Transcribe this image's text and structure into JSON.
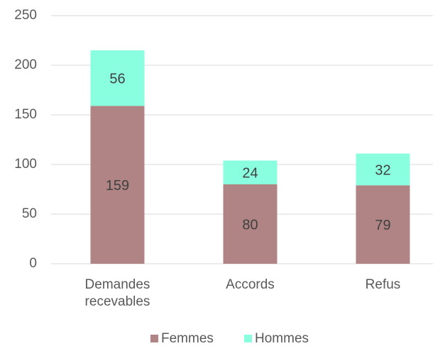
{
  "chart_data": {
    "type": "stacked_bar",
    "categories": [
      "Demandes recevables",
      "Accords",
      "Refus"
    ],
    "series": [
      {
        "name": "Femmes",
        "color": "#b08484",
        "values": [
          159,
          80,
          79
        ]
      },
      {
        "name": "Hommes",
        "color": "#8affdf",
        "values": [
          56,
          24,
          32
        ]
      }
    ],
    "ylim": [
      0,
      250
    ],
    "yticks": [
      0,
      50,
      100,
      150,
      200,
      250
    ],
    "grid": true,
    "legend": "bottom"
  }
}
